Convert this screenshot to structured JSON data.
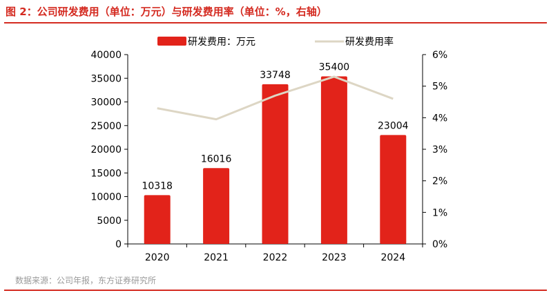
{
  "header": {
    "title": "图 2：公司研发费用（单位：万元）与研发费用率（单位：%，右轴）"
  },
  "footer": {
    "source": "数据来源：公司年报，东方证券研究所"
  },
  "colors": {
    "accent": "#d42a20",
    "bar": "#e2231a",
    "line": "#ddd6c4"
  },
  "chart_data": {
    "type": "bar",
    "categories": [
      "2020",
      "2021",
      "2022",
      "2023",
      "2024"
    ],
    "series": [
      {
        "name": "研发费用：万元",
        "type": "bar",
        "axis": "left",
        "values": [
          10318,
          16016,
          33748,
          35400,
          23004
        ],
        "labels": [
          "10318",
          "16016",
          "33748",
          "35400",
          "23004"
        ]
      },
      {
        "name": "研发费用率",
        "type": "line",
        "axis": "right",
        "values": [
          4.3,
          3.95,
          4.7,
          5.3,
          4.6
        ]
      }
    ],
    "ylim": [
      0,
      40000
    ],
    "y_ticks": [
      "0",
      "5000",
      "10000",
      "15000",
      "20000",
      "25000",
      "30000",
      "35000",
      "40000"
    ],
    "y2lim": [
      0,
      6
    ],
    "y2_ticks": [
      "0%",
      "1%",
      "2%",
      "3%",
      "4%",
      "5%",
      "6%"
    ],
    "legend_position": "top",
    "grid": false
  }
}
